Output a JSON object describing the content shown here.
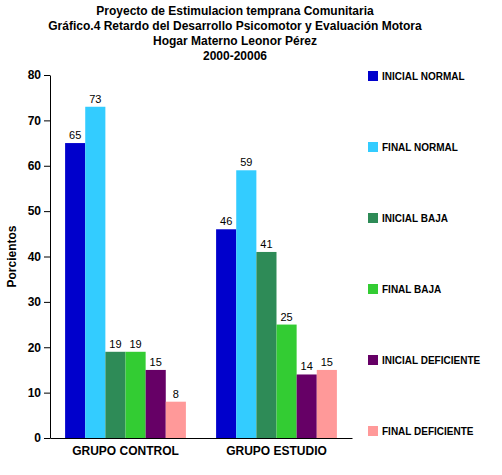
{
  "chart_data": {
    "type": "bar",
    "title": [
      "Proyecto de Estimulacion temprana Comunitaria",
      "Gráfico.4 Retardo del Desarrollo Psicomotor y Evaluación Motora",
      "Hogar Materno Leonor Pérez",
      "2000-20006"
    ],
    "y_label": "Porcientos",
    "categories": [
      "GRUPO CONTROL",
      "GRUPO ESTUDIO"
    ],
    "series": [
      {
        "name": "INICIAL NORMAL",
        "color": "#0000cc",
        "values": [
          65,
          46
        ]
      },
      {
        "name": "FINAL NORMAL",
        "color": "#33ccff",
        "values": [
          73,
          59
        ]
      },
      {
        "name": "INICIAL BAJA",
        "color": "#2e8b57",
        "values": [
          19,
          41
        ]
      },
      {
        "name": "FINAL BAJA",
        "color": "#33cc33",
        "values": [
          19,
          25
        ]
      },
      {
        "name": "INICIAL DEFICIENTE",
        "color": "#660066",
        "values": [
          15,
          14
        ]
      },
      {
        "name": "FINAL DEFICIENTE",
        "color": "#ff9999",
        "values": [
          8,
          15
        ]
      }
    ],
    "ylim": [
      0,
      80
    ],
    "yticks": [
      0,
      10,
      20,
      30,
      40,
      50,
      60,
      70,
      80
    ],
    "grid": false,
    "legend": "right",
    "data_labels": true
  }
}
